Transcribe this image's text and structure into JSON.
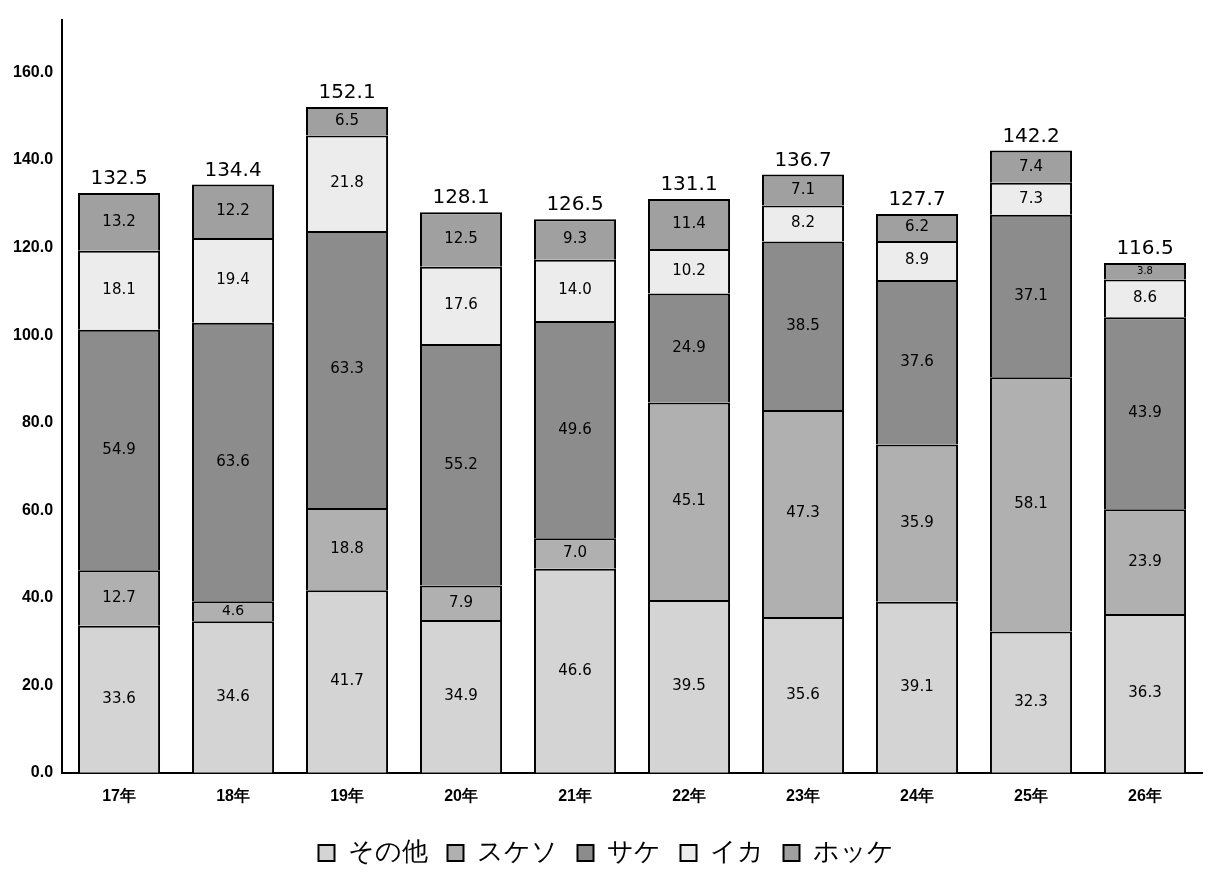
{
  "chart_data": {
    "type": "bar",
    "stacked": true,
    "categories": [
      "17年",
      "18年",
      "19年",
      "20年",
      "21年",
      "22年",
      "23年",
      "24年",
      "25年",
      "26年"
    ],
    "series": [
      {
        "name": "その他",
        "color": "#d4d4d4",
        "values": [
          33.6,
          34.6,
          41.7,
          34.9,
          46.6,
          39.5,
          35.6,
          39.1,
          32.3,
          36.3
        ],
        "value_labels": [
          "33.6",
          "34.6",
          "41.7",
          "34.9",
          "46.6",
          "39.5",
          "35.6",
          "39.1",
          "32.3",
          "36.3"
        ]
      },
      {
        "name": "スケソ",
        "color": "#b0b0b0",
        "values": [
          12.7,
          4.6,
          18.8,
          7.9,
          7.0,
          45.1,
          47.3,
          35.9,
          58.1,
          23.9
        ],
        "value_labels": [
          "12.7",
          "4.6",
          "18.8",
          "7.9",
          "7.0",
          "45.1",
          "47.3",
          "35.9",
          "58.1",
          "23.9"
        ]
      },
      {
        "name": "サケ",
        "color": "#8c8c8c",
        "values": [
          54.9,
          63.6,
          63.3,
          55.2,
          49.6,
          24.9,
          38.5,
          37.6,
          37.1,
          43.9
        ],
        "value_labels": [
          "54.9",
          "63.6",
          "63.3",
          "55.2",
          "49.6",
          "24.9",
          "38.5",
          "37.6",
          "37.1",
          "43.9"
        ]
      },
      {
        "name": "イカ",
        "color": "#ececec",
        "values": [
          18.1,
          19.4,
          21.8,
          17.6,
          14.0,
          10.2,
          8.2,
          8.9,
          7.3,
          8.6
        ],
        "value_labels": [
          "18.1",
          "19.4",
          "21.8",
          "17.6",
          "14.0",
          "10.2",
          "8.2",
          "8.9",
          "7.3",
          "8.6"
        ]
      },
      {
        "name": "ホッケ",
        "color": "#a0a0a0",
        "values": [
          13.2,
          12.2,
          6.5,
          12.5,
          9.3,
          11.4,
          7.1,
          6.2,
          7.4,
          3.8
        ],
        "value_labels": [
          "13.2",
          "12.2",
          "6.5",
          "12.5",
          "9.3",
          "11.4",
          "7.1",
          "6.2",
          "7.4",
          "3.8"
        ]
      }
    ],
    "totals": [
      "132.5",
      "134.4",
      "152.1",
      "128.1",
      "126.5",
      "131.1",
      "136.7",
      "127.7",
      "142.2",
      "116.5"
    ],
    "ylim": [
      0,
      172
    ],
    "yticks": [
      {
        "value": 0,
        "label": "0.0"
      },
      {
        "value": 20,
        "label": "20.0"
      },
      {
        "value": 40,
        "label": "40.0"
      },
      {
        "value": 60,
        "label": "60.0"
      },
      {
        "value": 80,
        "label": "80.0"
      },
      {
        "value": 100,
        "label": "100.0"
      },
      {
        "value": 120,
        "label": "120.0"
      },
      {
        "value": 140,
        "label": "140.0"
      },
      {
        "value": 160,
        "label": "160.0"
      }
    ],
    "grid": false,
    "legend": "bottom"
  }
}
